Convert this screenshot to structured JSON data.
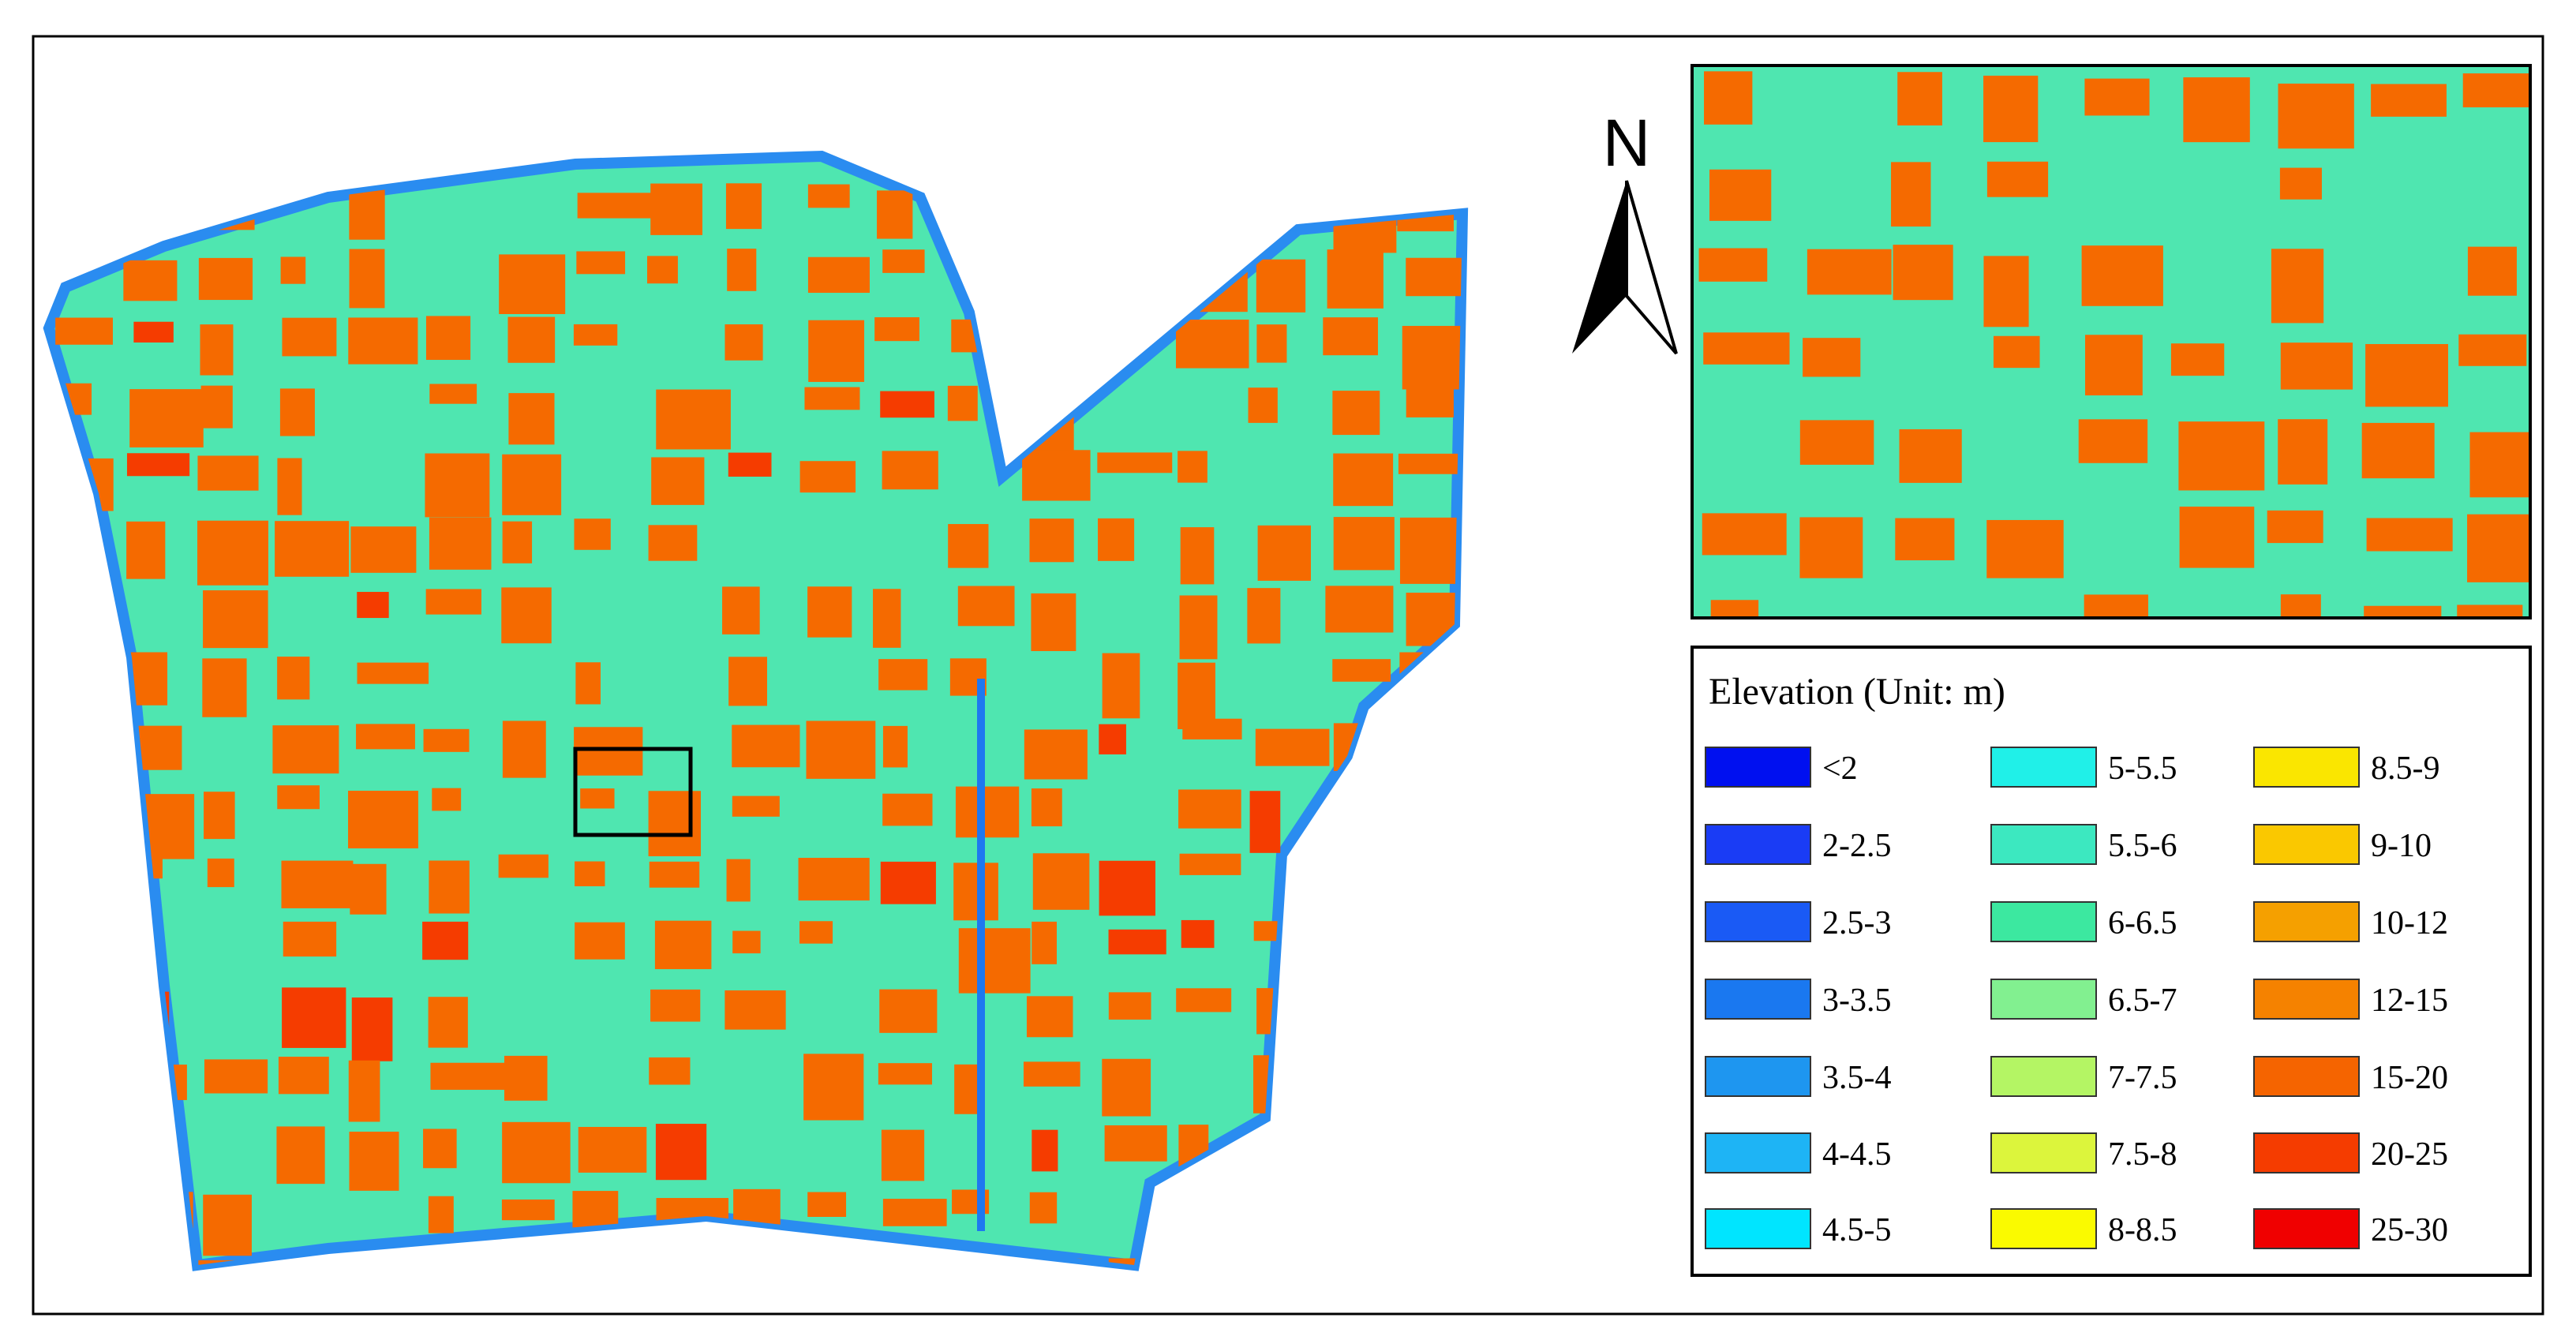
{
  "north_label": "N",
  "legend": {
    "title": "Elevation (Unit: m)",
    "items": [
      {
        "label": "<2",
        "color": "#0010f0"
      },
      {
        "label": "2-2.5",
        "color": "#1a3cf5"
      },
      {
        "label": "2.5-3",
        "color": "#1a5af5"
      },
      {
        "label": "3-3.5",
        "color": "#1a78f0"
      },
      {
        "label": "3.5-4",
        "color": "#1e96f0"
      },
      {
        "label": "4-4.5",
        "color": "#1eb4f5"
      },
      {
        "label": "4.5-5",
        "color": "#00e5ff"
      },
      {
        "label": "5-5.5",
        "color": "#20f0e8"
      },
      {
        "label": "5.5-6",
        "color": "#3ce8c0"
      },
      {
        "label": "6-6.5",
        "color": "#3ce8a0"
      },
      {
        "label": "6.5-7",
        "color": "#82f090"
      },
      {
        "label": "7-7.5",
        "color": "#b4f564"
      },
      {
        "label": "7.5-8",
        "color": "#dcf53c"
      },
      {
        "label": "8-8.5",
        "color": "#fafa00"
      },
      {
        "label": "8.5-9",
        "color": "#fae600"
      },
      {
        "label": "9-10",
        "color": "#fac800"
      },
      {
        "label": "10-12",
        "color": "#f5a000"
      },
      {
        "label": "12-15",
        "color": "#f58200"
      },
      {
        "label": "15-20",
        "color": "#f56400"
      },
      {
        "label": "20-25",
        "color": "#f53c00"
      },
      {
        "label": "25-30",
        "color": "#f00000"
      }
    ]
  }
}
